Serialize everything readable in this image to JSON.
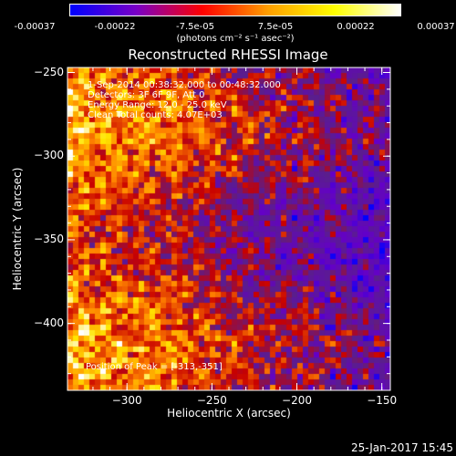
{
  "colorbar": {
    "ticks": [
      "-0.00037",
      "-0.00022",
      "-7.5e-05",
      "7.5e-05",
      "0.00022",
      "0.00037"
    ],
    "units": "(photons cm⁻² s⁻¹ asec⁻²)",
    "colors": [
      "#0000ff",
      "#7a00c8",
      "#ff0000",
      "#ffa000",
      "#ffff00",
      "#ffffff"
    ]
  },
  "chart_data": {
    "type": "heatmap",
    "title": "Reconstructed RHESSI Image",
    "xlabel": "Heliocentric X (arcsec)",
    "ylabel": "Heliocentric Y (arcsec)",
    "xlim": [
      -335,
      -145
    ],
    "ylim": [
      -440,
      -247
    ],
    "xticks": [
      -300,
      -250,
      -200,
      -150
    ],
    "yticks": [
      -250,
      -300,
      -350,
      -400
    ],
    "value_range": [
      -0.00037,
      0.00037
    ],
    "peak": [
      -313,
      -351
    ]
  },
  "annotations": {
    "time": "1-Sep-2014 00:38:32.000 to 00:48:32.000",
    "detectors": "Detectors: 3F 6F 9F, Att 0",
    "energy": "Energy Range: 12.0 - 25.0 keV",
    "clean": "Clean     Total counts: 4.07E+03",
    "peak": "Position of Peak = [-313,-351]"
  },
  "timestamp": "25-Jan-2017 15:45"
}
